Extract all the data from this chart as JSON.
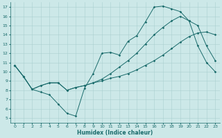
{
  "xlabel": "Humidex (Indice chaleur)",
  "bg_color": "#cce8e8",
  "line_color": "#1a6b6b",
  "grid_color": "#aacfcf",
  "xlim": [
    -0.5,
    23.5
  ],
  "ylim": [
    4.5,
    17.5
  ],
  "xticks": [
    0,
    1,
    2,
    3,
    4,
    5,
    6,
    7,
    8,
    9,
    10,
    11,
    12,
    13,
    14,
    15,
    16,
    17,
    18,
    19,
    20,
    21,
    22,
    23
  ],
  "yticks": [
    5,
    6,
    7,
    8,
    9,
    10,
    11,
    12,
    13,
    14,
    15,
    16,
    17
  ],
  "line1_x": [
    0,
    1,
    2,
    3,
    4,
    5,
    6,
    7,
    8,
    9,
    10,
    11,
    12,
    13,
    14,
    15,
    16,
    17,
    18,
    19,
    20,
    21,
    22,
    23
  ],
  "line1_y": [
    10.7,
    9.5,
    8.1,
    7.8,
    7.5,
    6.5,
    5.5,
    5.2,
    8.2,
    9.8,
    12.0,
    12.1,
    11.8,
    13.3,
    13.9,
    15.4,
    17.0,
    17.1,
    16.8,
    16.5,
    15.5,
    12.8,
    11.0,
    10.0
  ],
  "line2_x": [
    0,
    1,
    2,
    3,
    4,
    5,
    6,
    7,
    8,
    9,
    10,
    11,
    12,
    13,
    14,
    15,
    16,
    17,
    18,
    19,
    20,
    21,
    22,
    23
  ],
  "line2_y": [
    10.7,
    9.5,
    8.1,
    8.5,
    8.8,
    8.8,
    8.0,
    8.3,
    8.5,
    8.8,
    9.0,
    9.3,
    9.5,
    9.8,
    10.2,
    10.7,
    11.2,
    11.8,
    12.5,
    13.2,
    13.8,
    14.2,
    14.3,
    14.0
  ],
  "line3_x": [
    0,
    1,
    2,
    3,
    4,
    5,
    6,
    7,
    8,
    9,
    10,
    11,
    12,
    13,
    14,
    15,
    16,
    17,
    18,
    19,
    20,
    21,
    22,
    23
  ],
  "line3_y": [
    10.7,
    9.5,
    8.1,
    8.5,
    8.8,
    8.8,
    8.0,
    8.3,
    8.5,
    8.8,
    9.2,
    9.8,
    10.5,
    11.2,
    12.0,
    13.0,
    14.0,
    14.8,
    15.5,
    16.0,
    15.5,
    15.0,
    12.8,
    11.2
  ],
  "marker_style": "D",
  "marker_size": 1.8,
  "line_width": 0.7,
  "tick_fontsize": 4.5,
  "xlabel_fontsize": 5.5
}
